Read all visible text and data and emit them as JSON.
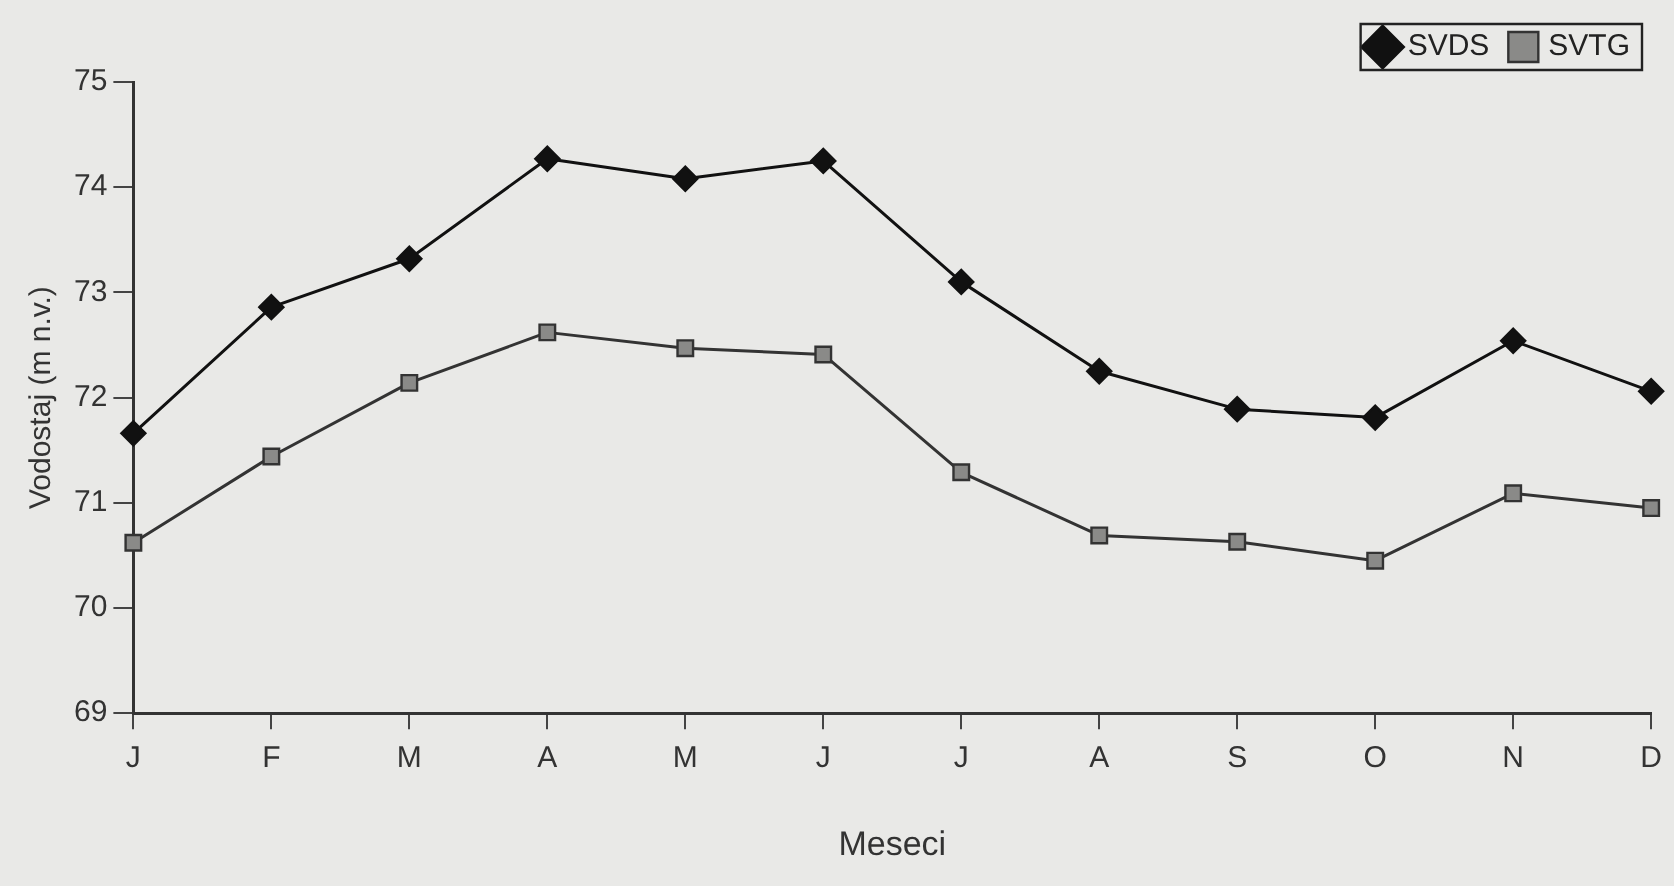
{
  "chart_data": {
    "type": "line",
    "xlabel": "Meseci",
    "ylabel": "Vodostaj (m n.v.)",
    "categories": [
      "J",
      "F",
      "M",
      "A",
      "M",
      "J",
      "J",
      "A",
      "S",
      "O",
      "N",
      "D"
    ],
    "series": [
      {
        "name": "SVDS",
        "color": "#111111",
        "marker": "diamond",
        "values": [
          71.66,
          72.86,
          73.32,
          74.27,
          74.08,
          74.25,
          73.1,
          72.25,
          71.89,
          71.81,
          72.54,
          72.06
        ]
      },
      {
        "name": "SVTG",
        "color": "#333333",
        "marker": "square",
        "values": [
          70.62,
          71.44,
          72.14,
          72.62,
          72.47,
          72.41,
          71.29,
          70.69,
          70.63,
          70.45,
          71.09,
          70.95
        ]
      }
    ],
    "ylim": [
      69,
      75
    ],
    "yticks": [
      69,
      70,
      71,
      72,
      73,
      74,
      75
    ],
    "grid": false,
    "legend": "top right",
    "line_style": "solid"
  }
}
